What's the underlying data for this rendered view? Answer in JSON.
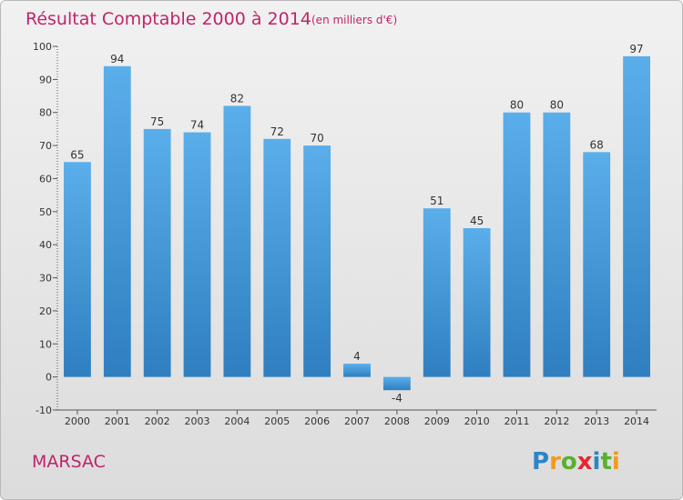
{
  "chart_data": {
    "type": "bar",
    "title": "Résultat Comptable 2000 à 2014",
    "subtitle": "(en milliers d'€)",
    "categories": [
      "2000",
      "2001",
      "2002",
      "2003",
      "2004",
      "2005",
      "2006",
      "2007",
      "2008",
      "2009",
      "2010",
      "2011",
      "2012",
      "2013",
      "2014"
    ],
    "values": [
      65,
      94,
      75,
      74,
      82,
      72,
      70,
      4,
      -4,
      51,
      45,
      80,
      80,
      68,
      97
    ],
    "ylim": [
      -10,
      100
    ],
    "yticks": [
      -10,
      0,
      10,
      20,
      30,
      40,
      50,
      60,
      70,
      80,
      90,
      100
    ],
    "grid": false,
    "colors": {
      "bar_light": "#5aaeea",
      "bar_dark": "#2f7fc0",
      "title": "#c0246b"
    }
  },
  "place": "MARSAC",
  "logo": {
    "letters": [
      "P",
      "r",
      "o",
      "x",
      "i",
      "t",
      "i"
    ],
    "colors": [
      "#2b86c8",
      "#f39a1e",
      "#58b030",
      "#e8262f",
      "#2b86c8",
      "#58b030",
      "#f39a1e"
    ]
  }
}
